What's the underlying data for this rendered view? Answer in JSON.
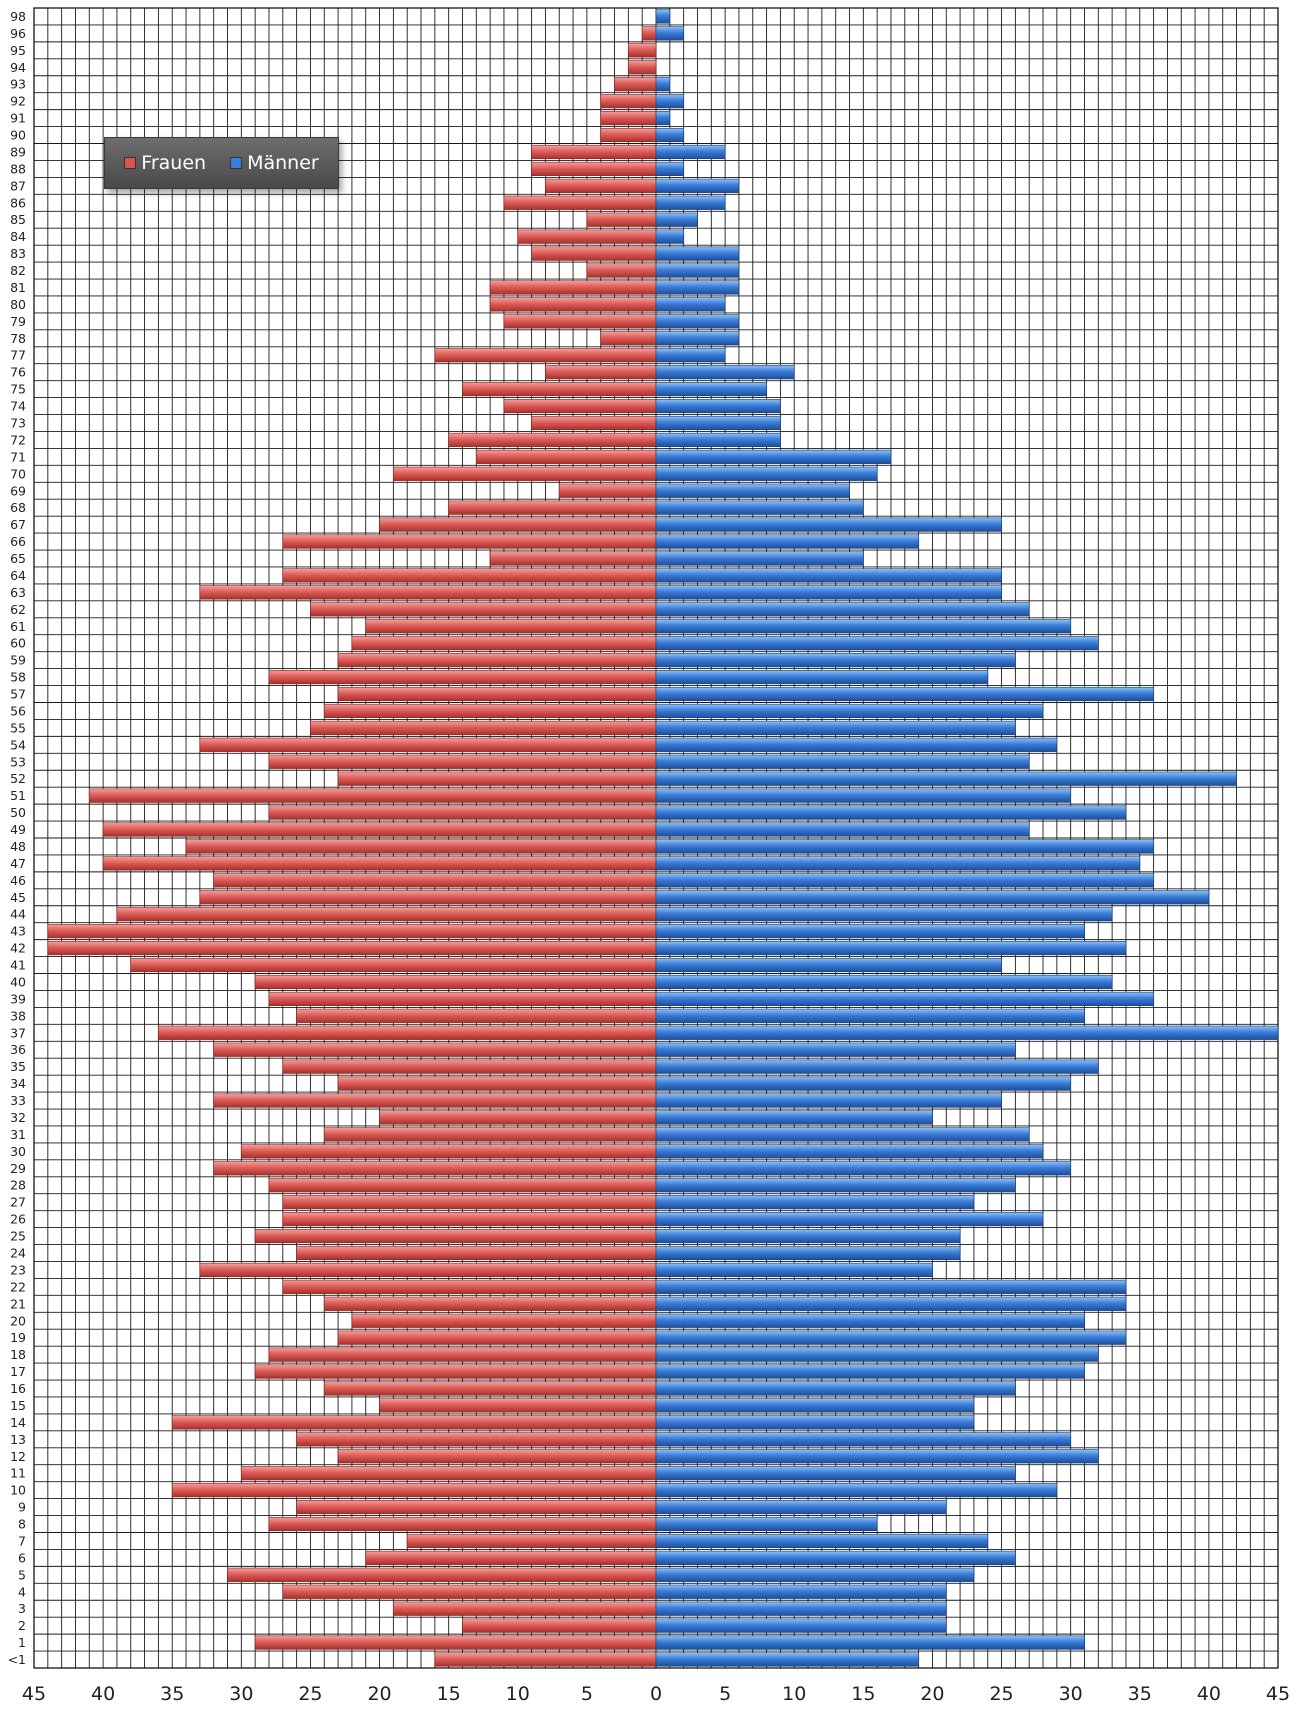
{
  "chart_data": {
    "type": "bar",
    "orientation": "horizontal-population-pyramid",
    "categories": [
      "<1",
      "1",
      "2",
      "3",
      "4",
      "5",
      "6",
      "7",
      "8",
      "9",
      "10",
      "11",
      "12",
      "13",
      "14",
      "15",
      "16",
      "17",
      "18",
      "19",
      "20",
      "21",
      "22",
      "23",
      "24",
      "25",
      "26",
      "27",
      "28",
      "29",
      "30",
      "31",
      "32",
      "33",
      "34",
      "35",
      "36",
      "37",
      "38",
      "39",
      "40",
      "41",
      "42",
      "43",
      "44",
      "45",
      "46",
      "47",
      "48",
      "49",
      "50",
      "51",
      "52",
      "53",
      "54",
      "55",
      "56",
      "57",
      "58",
      "59",
      "60",
      "61",
      "62",
      "63",
      "64",
      "65",
      "66",
      "67",
      "68",
      "69",
      "70",
      "71",
      "72",
      "73",
      "74",
      "75",
      "76",
      "77",
      "78",
      "79",
      "80",
      "81",
      "82",
      "83",
      "84",
      "85",
      "86",
      "87",
      "88",
      "89",
      "90",
      "91",
      "92",
      "93",
      "94",
      "95",
      "96",
      "98"
    ],
    "series": [
      {
        "name": "Frauen",
        "color": "#d9534f",
        "side": "left",
        "values": [
          16,
          29,
          14,
          19,
          27,
          31,
          21,
          18,
          28,
          26,
          35,
          30,
          23,
          26,
          35,
          20,
          24,
          29,
          28,
          23,
          22,
          24,
          27,
          33,
          26,
          29,
          27,
          27,
          28,
          32,
          30,
          24,
          20,
          32,
          23,
          27,
          32,
          36,
          26,
          28,
          29,
          38,
          44,
          44,
          39,
          33,
          32,
          40,
          34,
          40,
          28,
          41,
          23,
          28,
          33,
          25,
          24,
          23,
          28,
          23,
          22,
          21,
          25,
          33,
          27,
          12,
          27,
          20,
          15,
          7,
          19,
          13,
          15,
          9,
          11,
          14,
          8,
          16,
          4,
          11,
          12,
          12,
          5,
          9,
          10,
          5,
          11,
          8,
          9,
          9,
          4,
          4,
          4,
          3,
          2,
          2,
          1,
          0
        ]
      },
      {
        "name": "Männer",
        "color": "#3b7dd8",
        "side": "right",
        "values": [
          19,
          31,
          21,
          21,
          21,
          23,
          26,
          24,
          16,
          21,
          29,
          26,
          32,
          30,
          23,
          23,
          26,
          31,
          32,
          34,
          31,
          34,
          34,
          20,
          22,
          22,
          28,
          23,
          26,
          30,
          28,
          27,
          20,
          25,
          30,
          32,
          26,
          45,
          31,
          36,
          33,
          25,
          34,
          31,
          33,
          40,
          36,
          35,
          36,
          27,
          34,
          30,
          42,
          27,
          29,
          26,
          28,
          36,
          24,
          26,
          32,
          30,
          27,
          25,
          25,
          15,
          19,
          25,
          15,
          14,
          16,
          17,
          9,
          9,
          9,
          8,
          10,
          5,
          6,
          6,
          5,
          6,
          6,
          6,
          2,
          3,
          5,
          6,
          2,
          5,
          2,
          1,
          2,
          1,
          0,
          0,
          2,
          1
        ]
      }
    ],
    "x_ticks": [
      "45",
      "40",
      "35",
      "30",
      "25",
      "20",
      "15",
      "10",
      "5",
      "0",
      "5",
      "10",
      "15",
      "20",
      "25",
      "30",
      "35",
      "40",
      "45"
    ],
    "xlim": [
      -45,
      45
    ],
    "grid": true,
    "legend": {
      "position": "top-left",
      "labels": [
        "Frauen",
        "Männer"
      ]
    }
  }
}
